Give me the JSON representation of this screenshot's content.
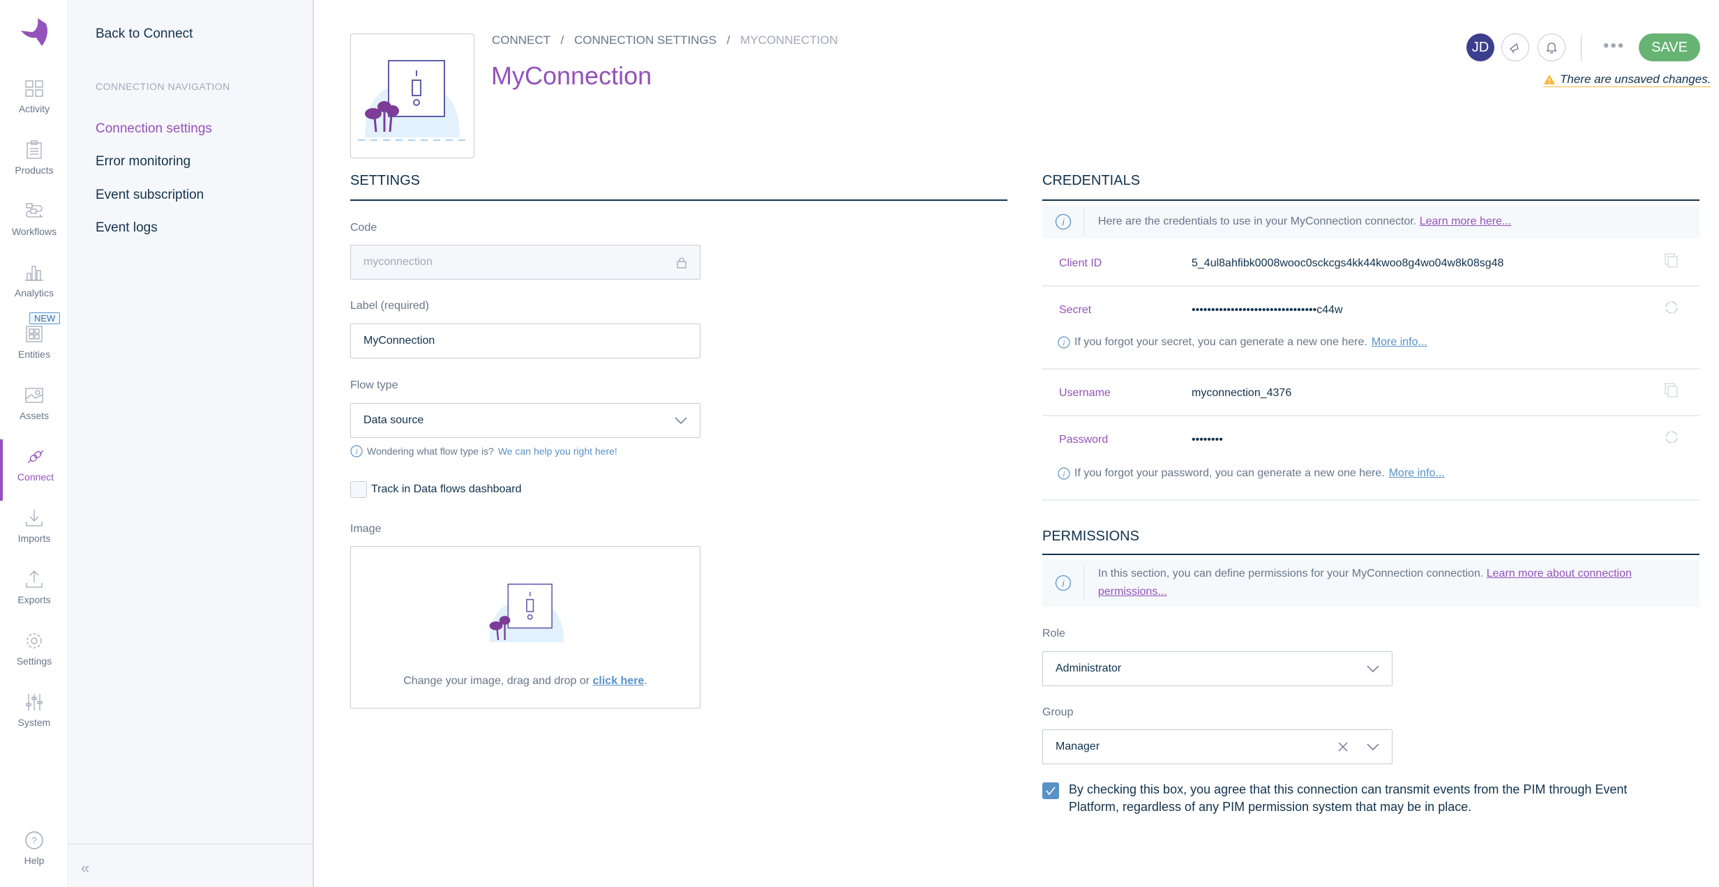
{
  "colors": {
    "accent": "#9452ba",
    "save": "#67b373",
    "avatar": "#3c3f8e",
    "warning": "#f9b53f",
    "link": "#5992c7"
  },
  "iconbar": {
    "items": [
      {
        "label": "Activity",
        "icon": "activity-icon"
      },
      {
        "label": "Products",
        "icon": "products-icon"
      },
      {
        "label": "Workflows",
        "icon": "workflows-icon"
      },
      {
        "label": "Analytics",
        "icon": "analytics-icon"
      },
      {
        "label": "Entities",
        "icon": "entities-icon",
        "badge": "NEW"
      },
      {
        "label": "Assets",
        "icon": "assets-icon"
      },
      {
        "label": "Connect",
        "icon": "connect-icon",
        "active": true
      },
      {
        "label": "Imports",
        "icon": "imports-icon"
      },
      {
        "label": "Exports",
        "icon": "exports-icon"
      },
      {
        "label": "Settings",
        "icon": "settings-icon"
      },
      {
        "label": "System",
        "icon": "system-icon"
      }
    ],
    "help": "Help"
  },
  "nav": {
    "back": "Back to Connect",
    "section": "CONNECTION NAVIGATION",
    "items": [
      "Connection settings",
      "Error monitoring",
      "Event subscription",
      "Event logs"
    ]
  },
  "header": {
    "breadcrumb": [
      "CONNECT",
      "CONNECTION SETTINGS",
      "MYCONNECTION"
    ],
    "title": "MyConnection",
    "avatar": "JD",
    "save": "SAVE",
    "unsaved": "There are unsaved changes."
  },
  "settings": {
    "title": "SETTINGS",
    "code": {
      "label": "Code",
      "value": "myconnection"
    },
    "label": {
      "label": "Label (required)",
      "value": "MyConnection"
    },
    "flow": {
      "label": "Flow type",
      "value": "Data source",
      "help": "Wondering what flow type is?",
      "help_link": "We can help you right here!"
    },
    "track": {
      "label": "Track in Data flows dashboard",
      "checked": false
    },
    "image": {
      "label": "Image",
      "text": "Change your image, drag and drop or",
      "link": "click here",
      "end": "."
    }
  },
  "credentials": {
    "title": "CREDENTIALS",
    "info": "Here are the credentials to use in your MyConnection connector.",
    "info_link": "Learn more here...",
    "client_id": {
      "label": "Client ID",
      "value": "5_4ul8ahfibk0008wooc0sckcgs4kk44kwoo8g4wo04w8k08sg48"
    },
    "secret": {
      "label": "Secret",
      "value": "••••••••••••••••••••••••••••••••c44w",
      "help": "If you forgot your secret, you can generate a new one here.",
      "help_link": "More info..."
    },
    "username": {
      "label": "Username",
      "value": "myconnection_4376"
    },
    "password": {
      "label": "Password",
      "value": "••••••••",
      "help": "If you forgot your password, you can generate a new one here.",
      "help_link": "More info..."
    }
  },
  "permissions": {
    "title": "PERMISSIONS",
    "info": "In this section, you can define permissions for your MyConnection connection.",
    "info_link": "Learn more about connection permissions...",
    "role": {
      "label": "Role",
      "value": "Administrator"
    },
    "group": {
      "label": "Group",
      "value": "Manager"
    },
    "consent": {
      "checked": true,
      "text": "By checking this box, you agree that this connection can transmit events from the PIM through Event Platform, regardless of any PIM permission system that may be in place."
    }
  }
}
